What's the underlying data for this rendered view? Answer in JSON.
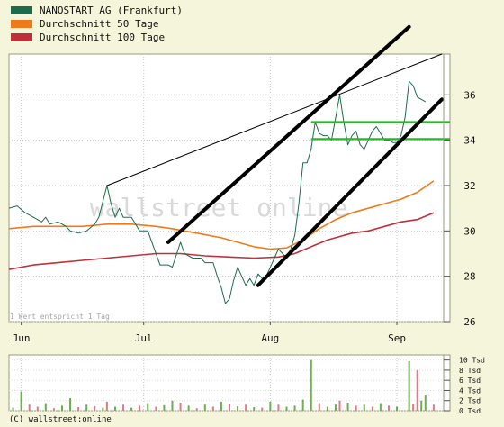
{
  "copyright": "(C) wallstreet:online",
  "colors": {
    "price": "#1e6b4c",
    "ma50": "#f07a1a",
    "ma100": "#c0303a",
    "trend": "#000000",
    "support": "#22bb22",
    "vol_up": "#6ab04c",
    "vol_down": "#e07a84"
  },
  "chart_data": [
    {
      "type": "line",
      "legend": [
        {
          "key": "price",
          "label": "NANOSTART AG (Frankfurt)"
        },
        {
          "key": "ma50",
          "label": "Durchschnitt 50 Tage"
        },
        {
          "key": "ma100",
          "label": "Durchschnitt 100 Tage"
        }
      ],
      "legend_position": "top-left",
      "grid": true,
      "x_ticks": [
        {
          "label": "Jun",
          "day": 3
        },
        {
          "label": "Jul",
          "day": 33
        },
        {
          "label": "Aug",
          "day": 64
        },
        {
          "label": "Sep",
          "day": 95
        }
      ],
      "ylim": [
        26,
        37.8
      ],
      "y_ticks": [
        26,
        28,
        30,
        32,
        34,
        36
      ],
      "xlim": [
        0,
        108
      ],
      "note": "1 Wert entspricht 1 Tag",
      "watermark": "wallstreet online",
      "series": [
        {
          "key": "price",
          "points": [
            [
              0,
              31.0
            ],
            [
              2,
              31.1
            ],
            [
              4,
              30.8
            ],
            [
              6,
              30.6
            ],
            [
              8,
              30.4
            ],
            [
              9,
              30.6
            ],
            [
              10,
              30.3
            ],
            [
              12,
              30.4
            ],
            [
              14,
              30.2
            ],
            [
              15,
              30.0
            ],
            [
              17,
              29.9
            ],
            [
              19,
              30.0
            ],
            [
              21,
              30.3
            ],
            [
              22,
              30.6
            ],
            [
              24,
              32.0
            ],
            [
              25,
              31.2
            ],
            [
              26,
              30.6
            ],
            [
              27,
              31.0
            ],
            [
              28,
              30.6
            ],
            [
              30,
              30.6
            ],
            [
              32,
              30.0
            ],
            [
              34,
              30.0
            ],
            [
              35,
              29.5
            ],
            [
              37,
              28.5
            ],
            [
              39,
              28.5
            ],
            [
              40,
              28.4
            ],
            [
              42,
              29.5
            ],
            [
              43,
              29.0
            ],
            [
              45,
              28.8
            ],
            [
              47,
              28.8
            ],
            [
              48,
              28.6
            ],
            [
              50,
              28.6
            ],
            [
              51,
              28.0
            ],
            [
              52,
              27.5
            ],
            [
              53,
              26.8
            ],
            [
              54,
              27.0
            ],
            [
              55,
              27.8
            ],
            [
              56,
              28.4
            ],
            [
              57,
              28.0
            ],
            [
              58,
              27.6
            ],
            [
              59,
              27.9
            ],
            [
              60,
              27.6
            ],
            [
              61,
              28.1
            ],
            [
              62,
              27.9
            ],
            [
              63,
              28.0
            ],
            [
              64,
              28.4
            ],
            [
              65,
              28.8
            ],
            [
              66,
              29.2
            ],
            [
              67,
              29.0
            ],
            [
              68,
              28.8
            ],
            [
              69,
              29.2
            ],
            [
              70,
              29.8
            ],
            [
              71,
              31.2
            ],
            [
              72,
              33.0
            ],
            [
              73,
              33.0
            ],
            [
              74,
              33.6
            ],
            [
              75,
              34.8
            ],
            [
              76,
              34.3
            ],
            [
              77,
              34.2
            ],
            [
              78,
              34.2
            ],
            [
              79,
              34.0
            ],
            [
              80,
              35.0
            ],
            [
              81,
              36.0
            ],
            [
              82,
              34.8
            ],
            [
              83,
              33.8
            ],
            [
              84,
              34.2
            ],
            [
              85,
              34.4
            ],
            [
              86,
              33.8
            ],
            [
              87,
              33.6
            ],
            [
              88,
              34.0
            ],
            [
              89,
              34.4
            ],
            [
              90,
              34.6
            ],
            [
              91,
              34.3
            ],
            [
              92,
              34.0
            ],
            [
              93,
              34.0
            ],
            [
              94,
              33.9
            ],
            [
              95,
              33.9
            ],
            [
              96,
              34.2
            ],
            [
              97,
              35.0
            ],
            [
              98,
              36.6
            ],
            [
              99,
              36.4
            ],
            [
              100,
              35.9
            ],
            [
              101,
              35.8
            ],
            [
              102,
              35.7
            ]
          ]
        },
        {
          "key": "ma50",
          "points": [
            [
              0,
              30.1
            ],
            [
              6,
              30.2
            ],
            [
              12,
              30.2
            ],
            [
              18,
              30.2
            ],
            [
              24,
              30.3
            ],
            [
              30,
              30.3
            ],
            [
              36,
              30.2
            ],
            [
              40,
              30.1
            ],
            [
              46,
              29.9
            ],
            [
              52,
              29.7
            ],
            [
              56,
              29.5
            ],
            [
              60,
              29.3
            ],
            [
              64,
              29.2
            ],
            [
              68,
              29.25
            ],
            [
              72,
              29.6
            ],
            [
              76,
              30.1
            ],
            [
              80,
              30.5
            ],
            [
              84,
              30.8
            ],
            [
              88,
              31.0
            ],
            [
              92,
              31.2
            ],
            [
              96,
              31.4
            ],
            [
              100,
              31.7
            ],
            [
              104,
              32.2
            ]
          ]
        },
        {
          "key": "ma100",
          "points": [
            [
              0,
              28.3
            ],
            [
              6,
              28.5
            ],
            [
              12,
              28.6
            ],
            [
              18,
              28.7
            ],
            [
              24,
              28.8
            ],
            [
              30,
              28.9
            ],
            [
              36,
              29.0
            ],
            [
              42,
              29.0
            ],
            [
              48,
              28.9
            ],
            [
              54,
              28.85
            ],
            [
              60,
              28.8
            ],
            [
              66,
              28.85
            ],
            [
              70,
              29.0
            ],
            [
              74,
              29.3
            ],
            [
              78,
              29.6
            ],
            [
              84,
              29.9
            ],
            [
              88,
              30.0
            ],
            [
              92,
              30.2
            ],
            [
              96,
              30.4
            ],
            [
              100,
              30.5
            ],
            [
              104,
              30.8
            ]
          ]
        }
      ],
      "trend_lines": [
        {
          "from": [
            24,
            32.0
          ],
          "to": [
            106,
            37.8
          ],
          "width": 1
        },
        {
          "from": [
            39,
            29.5
          ],
          "to": [
            98,
            39.0
          ],
          "width": 4
        },
        {
          "from": [
            61,
            27.6
          ],
          "to": [
            106,
            35.8
          ],
          "width": 4
        }
      ],
      "support_lines": [
        {
          "from": [
            74,
            34.8
          ],
          "to": [
            108,
            34.8
          ]
        },
        {
          "from": [
            74,
            34.05
          ],
          "to": [
            108,
            34.05
          ]
        }
      ]
    },
    {
      "type": "bar",
      "title": "",
      "y_ticks": [
        0,
        2,
        4,
        6,
        8,
        10
      ],
      "y_tick_suffix": " Tsd",
      "ylim": [
        0,
        11
      ],
      "values": [
        {
          "day": 1,
          "v": 0.6,
          "d": "up"
        },
        {
          "day": 3,
          "v": 3.8,
          "d": "up"
        },
        {
          "day": 5,
          "v": 1.2,
          "d": "down"
        },
        {
          "day": 7,
          "v": 0.8,
          "d": "down"
        },
        {
          "day": 9,
          "v": 1.5,
          "d": "up"
        },
        {
          "day": 11,
          "v": 0.5,
          "d": "down"
        },
        {
          "day": 13,
          "v": 1.0,
          "d": "up"
        },
        {
          "day": 15,
          "v": 2.5,
          "d": "up"
        },
        {
          "day": 17,
          "v": 0.7,
          "d": "down"
        },
        {
          "day": 19,
          "v": 1.2,
          "d": "up"
        },
        {
          "day": 21,
          "v": 0.9,
          "d": "down"
        },
        {
          "day": 23,
          "v": 0.6,
          "d": "up"
        },
        {
          "day": 24,
          "v": 1.8,
          "d": "down"
        },
        {
          "day": 26,
          "v": 0.8,
          "d": "up"
        },
        {
          "day": 28,
          "v": 1.2,
          "d": "down"
        },
        {
          "day": 30,
          "v": 0.6,
          "d": "up"
        },
        {
          "day": 32,
          "v": 1.0,
          "d": "down"
        },
        {
          "day": 34,
          "v": 1.5,
          "d": "up"
        },
        {
          "day": 36,
          "v": 0.8,
          "d": "down"
        },
        {
          "day": 38,
          "v": 1.1,
          "d": "up"
        },
        {
          "day": 40,
          "v": 2.0,
          "d": "up"
        },
        {
          "day": 42,
          "v": 1.6,
          "d": "down"
        },
        {
          "day": 44,
          "v": 1.0,
          "d": "up"
        },
        {
          "day": 46,
          "v": 0.5,
          "d": "down"
        },
        {
          "day": 48,
          "v": 1.2,
          "d": "up"
        },
        {
          "day": 50,
          "v": 0.8,
          "d": "down"
        },
        {
          "day": 52,
          "v": 1.8,
          "d": "up"
        },
        {
          "day": 54,
          "v": 1.4,
          "d": "down"
        },
        {
          "day": 56,
          "v": 0.9,
          "d": "up"
        },
        {
          "day": 58,
          "v": 1.2,
          "d": "down"
        },
        {
          "day": 60,
          "v": 0.7,
          "d": "up"
        },
        {
          "day": 62,
          "v": 0.6,
          "d": "down"
        },
        {
          "day": 64,
          "v": 1.8,
          "d": "up"
        },
        {
          "day": 66,
          "v": 1.2,
          "d": "down"
        },
        {
          "day": 68,
          "v": 0.8,
          "d": "up"
        },
        {
          "day": 70,
          "v": 1.0,
          "d": "up"
        },
        {
          "day": 72,
          "v": 2.2,
          "d": "up"
        },
        {
          "day": 74,
          "v": 10.0,
          "d": "up"
        },
        {
          "day": 76,
          "v": 1.5,
          "d": "down"
        },
        {
          "day": 78,
          "v": 0.8,
          "d": "up"
        },
        {
          "day": 80,
          "v": 1.2,
          "d": "up"
        },
        {
          "day": 81,
          "v": 2.0,
          "d": "down"
        },
        {
          "day": 83,
          "v": 1.6,
          "d": "up"
        },
        {
          "day": 85,
          "v": 1.0,
          "d": "down"
        },
        {
          "day": 87,
          "v": 1.2,
          "d": "up"
        },
        {
          "day": 89,
          "v": 0.8,
          "d": "down"
        },
        {
          "day": 91,
          "v": 1.5,
          "d": "up"
        },
        {
          "day": 93,
          "v": 1.0,
          "d": "down"
        },
        {
          "day": 95,
          "v": 0.8,
          "d": "up"
        },
        {
          "day": 98,
          "v": 9.8,
          "d": "up"
        },
        {
          "day": 99,
          "v": 1.4,
          "d": "down"
        },
        {
          "day": 100,
          "v": 8.0,
          "d": "down"
        },
        {
          "day": 101,
          "v": 2.0,
          "d": "up"
        },
        {
          "day": 102,
          "v": 3.0,
          "d": "up"
        },
        {
          "day": 104,
          "v": 1.2,
          "d": "down"
        }
      ]
    }
  ]
}
